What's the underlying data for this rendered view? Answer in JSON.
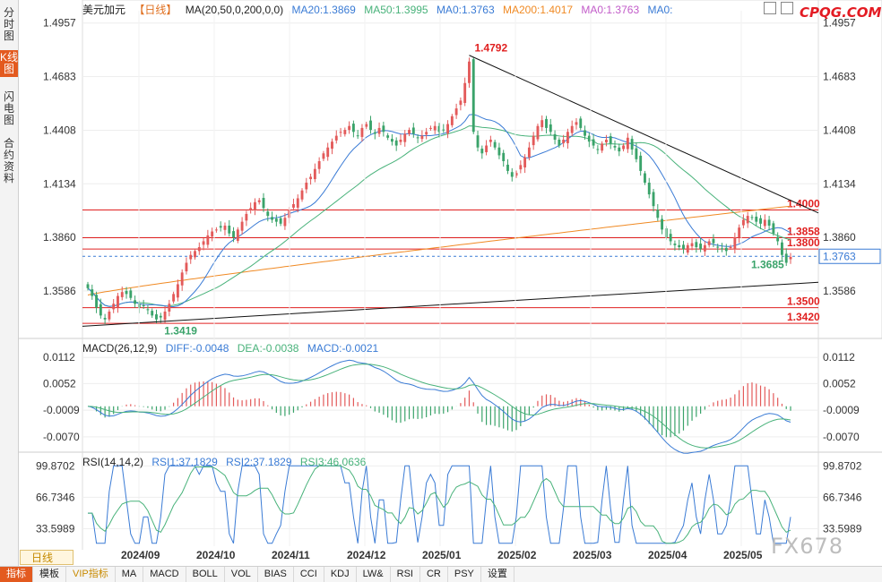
{
  "header": {
    "symbol": "美元加元",
    "period_tag": "【日线】",
    "ma_label": "MA(20,50,0,200,0,0)",
    "ma20": "MA20:1.3869",
    "ma50": "MA50:1.3995",
    "ma0a": "MA0:1.3763",
    "ma200": "MA200:1.4017",
    "ma0b": "MA0:1.3763",
    "ma0c": "MA0:"
  },
  "logo": "CPQG.COM",
  "watermark": "FX678",
  "left_tabs": [
    {
      "label": "分时图",
      "active": false
    },
    {
      "label": "K线图",
      "active": true
    },
    {
      "label": "闪电图",
      "active": false
    },
    {
      "label": "合约资料",
      "active": false
    }
  ],
  "period_button": "日线",
  "bottom_tabs": [
    {
      "label": "指标",
      "active": true,
      "vip": false
    },
    {
      "label": "模板",
      "active": false,
      "vip": false
    },
    {
      "label": "VIP指标",
      "active": false,
      "vip": true
    },
    {
      "label": "MA",
      "active": false,
      "vip": false
    },
    {
      "label": "MACD",
      "active": false,
      "vip": false
    },
    {
      "label": "BOLL",
      "active": false,
      "vip": false
    },
    {
      "label": "VOL",
      "active": false,
      "vip": false
    },
    {
      "label": "BIAS",
      "active": false,
      "vip": false
    },
    {
      "label": "CCI",
      "active": false,
      "vip": false
    },
    {
      "label": "KDJ",
      "active": false,
      "vip": false
    },
    {
      "label": "LW&",
      "active": false,
      "vip": false
    },
    {
      "label": "RSI",
      "active": false,
      "vip": false
    },
    {
      "label": "CR",
      "active": false,
      "vip": false
    },
    {
      "label": "PSY",
      "active": false,
      "vip": false
    },
    {
      "label": "设置",
      "active": false,
      "vip": false
    }
  ],
  "macd_header": {
    "label": "MACD(26,12,9)",
    "diff": "DIFF:-0.0048",
    "dea": "DEA:-0.0038",
    "macd": "MACD:-0.0021"
  },
  "rsi_header": {
    "label": "RSI(14,14,2)",
    "rsi1": "RSI1:37.1829",
    "rsi2": "RSI2:37.1829",
    "rsi3": "RSI3:46.0636"
  },
  "colors": {
    "up": "#e35a5a",
    "down": "#3aa36a",
    "ma20": "#3a7bd5",
    "ma50": "#48b27a",
    "ma200": "#f08a24",
    "level": "#e02020",
    "trend": "#111111",
    "price_tag": "#3a7bd5"
  },
  "chart_data": [
    {
      "type": "candlestick",
      "title": "",
      "x_tick_labels": [
        "2024/09",
        "2024/10",
        "2024/11",
        "2024/12",
        "2025/01",
        "2025/02",
        "2025/03",
        "2025/04",
        "2025/05"
      ],
      "y_tick_labels": [
        "1.4957",
        "1.4683",
        "1.4408",
        "1.4134",
        "1.3860",
        "1.3586"
      ],
      "ylim": [
        1.337,
        1.502
      ],
      "grid": true,
      "current_price": "1.3763",
      "horizontal_levels": [
        {
          "value": 1.4,
          "label": "1.4000"
        },
        {
          "value": 1.3858,
          "label": "1.3858"
        },
        {
          "value": 1.38,
          "label": "1.3800"
        },
        {
          "value": 1.35,
          "label": "1.3500"
        },
        {
          "value": 1.342,
          "label": "1.3420"
        }
      ],
      "price_annotations": [
        {
          "label": "1.4792",
          "value": 1.4792,
          "kind": "high"
        },
        {
          "label": "1.3419",
          "value": 1.3419,
          "kind": "low"
        },
        {
          "label": "1.3685",
          "value": 1.3685,
          "kind": "low"
        }
      ],
      "trendlines": [
        {
          "name": "upper",
          "from_value": 1.4792,
          "to_value": 1.3985
        },
        {
          "name": "lower",
          "from_value": 1.3405,
          "to_value": 1.363
        }
      ],
      "series_keypoints": {
        "close": [
          1.36,
          1.356,
          1.35,
          1.346,
          1.344,
          1.348,
          1.352,
          1.356,
          1.358,
          1.357,
          1.355,
          1.352,
          1.35,
          1.351,
          1.349,
          1.346,
          1.344,
          1.345,
          1.348,
          1.352,
          1.357,
          1.362,
          1.368,
          1.373,
          1.377,
          1.379,
          1.381,
          1.384,
          1.387,
          1.389,
          1.39,
          1.391,
          1.392,
          1.388,
          1.386,
          1.39,
          1.394,
          1.398,
          1.401,
          1.404,
          1.405,
          1.401,
          1.397,
          1.395,
          1.394,
          1.393,
          1.396,
          1.4,
          1.403,
          1.406,
          1.41,
          1.414,
          1.417,
          1.421,
          1.425,
          1.429,
          1.432,
          1.435,
          1.438,
          1.44,
          1.441,
          1.443,
          1.44,
          1.438,
          1.442,
          1.444,
          1.441,
          1.439,
          1.442,
          1.44,
          1.437,
          1.435,
          1.433,
          1.436,
          1.439,
          1.441,
          1.439,
          1.437,
          1.438,
          1.44,
          1.442,
          1.443,
          1.44,
          1.441,
          1.444,
          1.448,
          1.452,
          1.456,
          1.465,
          1.476,
          1.44,
          1.432,
          1.429,
          1.433,
          1.436,
          1.432,
          1.428,
          1.425,
          1.42,
          1.417,
          1.419,
          1.423,
          1.427,
          1.432,
          1.438,
          1.443,
          1.446,
          1.442,
          1.44,
          1.436,
          1.433,
          1.436,
          1.44,
          1.443,
          1.445,
          1.442,
          1.438,
          1.435,
          1.433,
          1.431,
          1.434,
          1.436,
          1.434,
          1.432,
          1.43,
          1.433,
          1.437,
          1.431,
          1.426,
          1.42,
          1.414,
          1.408,
          1.402,
          1.396,
          1.39,
          1.386,
          1.384,
          1.382,
          1.381,
          1.38,
          1.382,
          1.383,
          1.381,
          1.38,
          1.382,
          1.384,
          1.383,
          1.381,
          1.38,
          1.379,
          1.381,
          1.386,
          1.391,
          1.395,
          1.397,
          1.396,
          1.394,
          1.393,
          1.395,
          1.392,
          1.388,
          1.384,
          1.377,
          1.373,
          1.376
        ]
      },
      "ma_lines": [
        {
          "name": "MA20",
          "last": 1.3869
        },
        {
          "name": "MA50",
          "last": 1.3995
        },
        {
          "name": "MA200",
          "last": 1.4017
        }
      ]
    },
    {
      "type": "bar+line",
      "title": "MACD(26,12,9)",
      "y_tick_labels": [
        "0.0112",
        "0.0052",
        "-0.0009",
        "-0.0070"
      ],
      "ylim": [
        -0.0095,
        0.0135
      ],
      "series": [
        {
          "name": "DIFF",
          "last": -0.0048
        },
        {
          "name": "DEA",
          "last": -0.0038
        },
        {
          "name": "MACD",
          "last": -0.0021
        }
      ]
    },
    {
      "type": "line",
      "title": "RSI(14,14,2)",
      "y_tick_labels": [
        "99.8702",
        "66.7346",
        "33.5989"
      ],
      "ylim": [
        15,
        105
      ],
      "series": [
        {
          "name": "RSI1",
          "last": 37.1829
        },
        {
          "name": "RSI2",
          "last": 37.1829
        },
        {
          "name": "RSI3",
          "last": 46.0636
        }
      ]
    }
  ]
}
